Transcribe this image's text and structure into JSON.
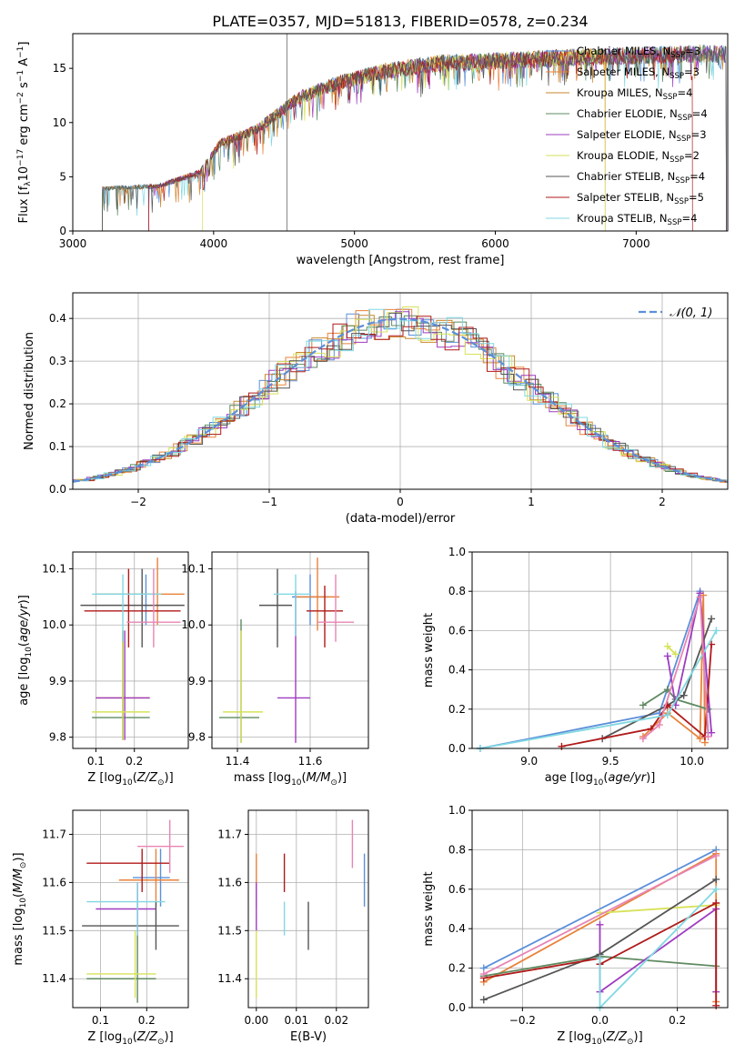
{
  "figure_title": "PLATE=0357, MJD=51813, FIBERID=0578, z=0.234",
  "colors": {
    "Chabrier MILES": "#5b8fd9",
    "Salpeter MILES": "#e8823a",
    "Kroupa MILES": "#c9872d",
    "Chabrier ELODIE": "#5f8a61",
    "Salpeter ELODIE": "#9f3cc1",
    "Kroupa ELODIE": "#d7e25a",
    "Chabrier STELIB": "#555555",
    "Salpeter STELIB": "#b01a1a",
    "Kroupa STELIB": "#80d8e2",
    "pink": "#e884b4"
  },
  "chart_data": [
    {
      "id": "spectrum",
      "type": "line",
      "xlabel": "wavelength [Angstrom, rest frame]",
      "ylabel": "Flux [f",
      "xlim": [
        3000,
        7650
      ],
      "ylim": [
        0,
        18.2
      ],
      "xticks": [
        "3000",
        "4000",
        "5000",
        "6000",
        "7000"
      ],
      "yticks": [
        "0",
        "5",
        "10",
        "15"
      ],
      "legend": [
        {
          "name": "Chabrier MILES",
          "nssp": "=3"
        },
        {
          "name": "Salpeter MILES",
          "nssp": "=3"
        },
        {
          "name": "Kroupa MILES",
          "nssp": "=4"
        },
        {
          "name": "Chabrier ELODIE",
          "nssp": "=4"
        },
        {
          "name": "Salpeter ELODIE",
          "nssp": "=3"
        },
        {
          "name": "Kroupa ELODIE",
          "nssp": "=2"
        },
        {
          "name": "Chabrier STELIB",
          "nssp": "=4"
        },
        {
          "name": "Salpeter STELIB",
          "nssp": "=5"
        },
        {
          "name": "Kroupa STELIB",
          "nssp": "=4"
        }
      ],
      "continuum": [
        [
          3200,
          4.0
        ],
        [
          3600,
          4.2
        ],
        [
          3900,
          5.5
        ],
        [
          4050,
          8.3
        ],
        [
          4300,
          9.5
        ],
        [
          4600,
          12.5
        ],
        [
          4900,
          14.0
        ],
        [
          5200,
          15.0
        ],
        [
          5600,
          15.8
        ],
        [
          6000,
          16.0
        ],
        [
          6500,
          16.3
        ],
        [
          7000,
          16.5
        ],
        [
          7500,
          16.7
        ],
        [
          7640,
          16.6
        ]
      ],
      "starts": [
        3210,
        3210,
        3540,
        3210,
        3540,
        3920,
        3210,
        3540,
        3210
      ],
      "ends": [
        7640,
        6780,
        7640,
        7640,
        7640,
        6780,
        7640,
        7400,
        7640
      ]
    },
    {
      "id": "residuals",
      "type": "line",
      "xlabel": "(data-model)/error",
      "ylabel": "Normed distribution",
      "xlim": [
        -2.5,
        2.5
      ],
      "ylim": [
        0,
        0.46
      ],
      "xticks": [
        "−2",
        "−1",
        "0",
        "1",
        "2"
      ],
      "yticks": [
        "0.0",
        "0.1",
        "0.2",
        "0.3",
        "0.4"
      ],
      "legend": "𝒩(0, 1)"
    },
    {
      "id": "age-vs-Z",
      "type": "scatter",
      "xlabel": "Z [log",
      "ylabel": "age  [log",
      "xlim": [
        0.04,
        0.34
      ],
      "ylim": [
        9.78,
        10.13
      ],
      "xticks": [
        "0.1",
        "0.2"
      ],
      "yticks": [
        "9.8",
        "9.9",
        "10.0",
        "10.1"
      ],
      "points": [
        {
          "s": "Chabrier MILES",
          "x": 0.23,
          "y": 10.055,
          "xe": [
            0.1,
            0.26
          ],
          "ye": [
            10.0,
            10.09
          ]
        },
        {
          "s": "Salpeter MILES",
          "x": 0.26,
          "y": 10.055,
          "xe": [
            0.1,
            0.33
          ],
          "ye": [
            10.0,
            10.12
          ]
        },
        {
          "s": "Kroupa MILES",
          "x": 0.17,
          "y": 9.87,
          "xe": [
            0.1,
            0.24
          ],
          "ye": [
            9.795,
            9.99
          ]
        },
        {
          "s": "Chabrier ELODIE",
          "x": 0.17,
          "y": 9.835,
          "xe": [
            0.09,
            0.24
          ],
          "ye": [
            9.795,
            9.99
          ]
        },
        {
          "s": "Salpeter ELODIE",
          "x": 0.175,
          "y": 9.87,
          "xe": [
            0.1,
            0.24
          ],
          "ye": [
            9.795,
            9.99
          ]
        },
        {
          "s": "Kroupa ELODIE",
          "x": 0.17,
          "y": 9.845,
          "xe": [
            0.09,
            0.24
          ],
          "ye": [
            9.795,
            9.99
          ]
        },
        {
          "s": "Chabrier STELIB",
          "x": 0.22,
          "y": 10.035,
          "xe": [
            0.06,
            0.33
          ],
          "ye": [
            9.96,
            10.1
          ]
        },
        {
          "s": "Salpeter STELIB",
          "x": 0.185,
          "y": 10.025,
          "xe": [
            0.07,
            0.32
          ],
          "ye": [
            9.96,
            10.1
          ]
        },
        {
          "s": "Kroupa STELIB",
          "x": 0.17,
          "y": 10.055,
          "xe": [
            0.09,
            0.27
          ],
          "ye": [
            9.97,
            10.09
          ]
        },
        {
          "s": "pink",
          "x": 0.25,
          "y": 10.005,
          "xe": [
            0.18,
            0.32
          ],
          "ye": [
            9.96,
            10.1
          ]
        }
      ]
    },
    {
      "id": "age-vs-mass",
      "type": "scatter",
      "xlabel": "mass [log",
      "ylabel": "",
      "xlim": [
        11.33,
        11.76
      ],
      "ylim": [
        9.78,
        10.13
      ],
      "xticks": [
        "11.4",
        "11.6"
      ],
      "yticks": [
        "9.8",
        "9.9",
        "10.0",
        "10.1"
      ],
      "points": [
        {
          "s": "Chabrier MILES",
          "x": 11.6,
          "y": 10.05,
          "xe": [
            11.55,
            11.65
          ],
          "ye": [
            10.0,
            10.09
          ]
        },
        {
          "s": "Salpeter MILES",
          "x": 11.62,
          "y": 10.05,
          "xe": [
            11.56,
            11.68
          ],
          "ye": [
            9.99,
            10.12
          ]
        },
        {
          "s": "Chabrier ELODIE",
          "x": 11.41,
          "y": 9.835,
          "xe": [
            11.35,
            11.46
          ],
          "ye": [
            9.79,
            10.01
          ]
        },
        {
          "s": "Salpeter ELODIE",
          "x": 11.56,
          "y": 9.87,
          "xe": [
            11.51,
            11.6
          ],
          "ye": [
            9.79,
            10.06
          ]
        },
        {
          "s": "Kroupa ELODIE",
          "x": 11.41,
          "y": 9.845,
          "xe": [
            11.36,
            11.47
          ],
          "ye": [
            9.79,
            9.99
          ]
        },
        {
          "s": "Chabrier STELIB",
          "x": 11.51,
          "y": 10.035,
          "xe": [
            11.46,
            11.55
          ],
          "ye": [
            9.96,
            10.1
          ]
        },
        {
          "s": "Salpeter STELIB",
          "x": 11.64,
          "y": 10.025,
          "xe": [
            11.59,
            11.69
          ],
          "ye": [
            9.96,
            10.07
          ]
        },
        {
          "s": "Kroupa STELIB",
          "x": 11.56,
          "y": 10.055,
          "xe": [
            11.5,
            11.6
          ],
          "ye": [
            9.98,
            10.09
          ]
        },
        {
          "s": "pink",
          "x": 11.67,
          "y": 10.005,
          "xe": [
            11.62,
            11.72
          ],
          "ye": [
            9.97,
            10.09
          ]
        }
      ]
    },
    {
      "id": "weight-vs-age",
      "type": "line",
      "xlabel": "age  [log",
      "ylabel": "mass weight",
      "xlim": [
        8.65,
        10.22
      ],
      "ylim": [
        0,
        1.0
      ],
      "xticks": [
        "9.0",
        "9.5",
        "10.0"
      ],
      "yticks": [
        "0.0",
        "0.2",
        "0.4",
        "0.6",
        "0.8",
        "1.0"
      ],
      "series": [
        {
          "s": "Chabrier MILES",
          "x": [
            8.7,
            9.8,
            10.05,
            10.1
          ],
          "y": [
            0.0,
            0.18,
            0.8,
            0.08
          ]
        },
        {
          "s": "Salpeter MILES",
          "x": [
            9.7,
            9.85,
            10.05,
            10.07,
            10.08
          ],
          "y": [
            0.06,
            0.18,
            0.05,
            0.78,
            0.03
          ]
        },
        {
          "s": "Chabrier ELODIE",
          "x": [
            9.7,
            9.85,
            9.9,
            10.1
          ],
          "y": [
            0.22,
            0.3,
            0.25,
            0.2
          ]
        },
        {
          "s": "Salpeter ELODIE",
          "x": [
            9.85,
            9.9,
            10.05,
            10.12
          ],
          "y": [
            0.47,
            0.22,
            0.79,
            0.08
          ]
        },
        {
          "s": "Kroupa ELODIE",
          "x": [
            9.85,
            9.9
          ],
          "y": [
            0.52,
            0.48
          ]
        },
        {
          "s": "Chabrier STELIB",
          "x": [
            9.45,
            9.85,
            9.95,
            10.12
          ],
          "y": [
            0.05,
            0.22,
            0.27,
            0.66
          ]
        },
        {
          "s": "Salpeter STELIB",
          "x": [
            9.2,
            9.75,
            9.85,
            10.08,
            10.12
          ],
          "y": [
            0.01,
            0.1,
            0.22,
            0.06,
            0.53
          ]
        },
        {
          "s": "Kroupa STELIB",
          "x": [
            8.7,
            9.85,
            10.15
          ],
          "y": [
            0.0,
            0.17,
            0.6
          ]
        },
        {
          "s": "pink",
          "x": [
            9.7,
            9.8,
            10.05,
            10.1
          ],
          "y": [
            0.05,
            0.12,
            0.77,
            0.06
          ]
        }
      ]
    },
    {
      "id": "mass-vs-Z",
      "type": "scatter",
      "xlabel": "Z [log",
      "ylabel": "mass [log",
      "xlim": [
        0.04,
        0.29
      ],
      "ylim": [
        11.34,
        11.75
      ],
      "xticks": [
        "0.1",
        "0.2"
      ],
      "yticks": [
        "11.4",
        "11.5",
        "11.6",
        "11.7"
      ],
      "points": [
        {
          "s": "Chabrier MILES",
          "x": 0.23,
          "y": 11.61,
          "xe": [
            0.17,
            0.25
          ],
          "ye": [
            11.55,
            11.67
          ]
        },
        {
          "s": "Salpeter MILES",
          "x": 0.22,
          "y": 11.605,
          "xe": [
            0.14,
            0.27
          ],
          "ye": [
            11.55,
            11.67
          ]
        },
        {
          "s": "Chabrier ELODIE",
          "x": 0.18,
          "y": 11.4,
          "xe": [
            0.07,
            0.22
          ],
          "ye": [
            11.35,
            11.49
          ]
        },
        {
          "s": "Salpeter ELODIE",
          "x": 0.18,
          "y": 11.545,
          "xe": [
            0.09,
            0.22
          ],
          "ye": [
            11.49,
            11.6
          ]
        },
        {
          "s": "Kroupa ELODIE",
          "x": 0.175,
          "y": 11.41,
          "xe": [
            0.07,
            0.22
          ],
          "ye": [
            11.36,
            11.5
          ]
        },
        {
          "s": "Chabrier STELIB",
          "x": 0.22,
          "y": 11.51,
          "xe": [
            0.06,
            0.27
          ],
          "ye": [
            11.46,
            11.56
          ]
        },
        {
          "s": "Salpeter STELIB",
          "x": 0.19,
          "y": 11.64,
          "xe": [
            0.07,
            0.25
          ],
          "ye": [
            11.58,
            11.67
          ]
        },
        {
          "s": "Kroupa STELIB",
          "x": 0.18,
          "y": 11.56,
          "xe": [
            0.07,
            0.24
          ],
          "ye": [
            11.49,
            11.6
          ]
        },
        {
          "s": "pink",
          "x": 0.25,
          "y": 11.675,
          "xe": [
            0.18,
            0.28
          ],
          "ye": [
            11.62,
            11.73
          ]
        }
      ]
    },
    {
      "id": "mass-vs-EBV",
      "type": "scatter",
      "xlabel": "E(B-V)",
      "ylabel": "",
      "xlim": [
        -0.002,
        0.028
      ],
      "ylim": [
        11.34,
        11.75
      ],
      "xticks": [
        "0.00",
        "0.01",
        "0.02"
      ],
      "yticks": [
        "11.4",
        "11.5",
        "11.6",
        "11.7"
      ],
      "points": [
        {
          "s": "Chabrier MILES",
          "x": 0.027,
          "y": 11.61,
          "xe": [
            0.027,
            0.027
          ],
          "ye": [
            11.55,
            11.66
          ]
        },
        {
          "s": "Salpeter MILES",
          "x": 0.0,
          "y": 11.6,
          "xe": [
            0.0,
            0.0
          ],
          "ye": [
            11.55,
            11.66
          ]
        },
        {
          "s": "Salpeter ELODIE",
          "x": 0.0,
          "y": 11.55,
          "xe": [
            0.0,
            0.0
          ],
          "ye": [
            11.5,
            11.6
          ]
        },
        {
          "s": "Kroupa ELODIE",
          "x": 0.0,
          "y": 11.41,
          "xe": [
            0.0,
            0.0
          ],
          "ye": [
            11.36,
            11.5
          ]
        },
        {
          "s": "Chabrier STELIB",
          "x": 0.013,
          "y": 11.51,
          "xe": [
            0.013,
            0.013
          ],
          "ye": [
            11.46,
            11.56
          ]
        },
        {
          "s": "Salpeter STELIB",
          "x": 0.007,
          "y": 11.62,
          "xe": [
            0.007,
            0.007
          ],
          "ye": [
            11.58,
            11.66
          ]
        },
        {
          "s": "Kroupa STELIB",
          "x": 0.007,
          "y": 11.53,
          "xe": [
            0.007,
            0.007
          ],
          "ye": [
            11.49,
            11.56
          ]
        },
        {
          "s": "pink",
          "x": 0.024,
          "y": 11.68,
          "xe": [
            0.024,
            0.024
          ],
          "ye": [
            11.63,
            11.73
          ]
        }
      ]
    },
    {
      "id": "weight-vs-Z",
      "type": "line",
      "xlabel": "Z [log",
      "ylabel": "mass weight",
      "xlim": [
        -0.33,
        0.33
      ],
      "ylim": [
        0,
        1.0
      ],
      "xticks": [
        "−0.2",
        "0.0",
        "0.2"
      ],
      "yticks": [
        "0.0",
        "0.2",
        "0.4",
        "0.6",
        "0.8",
        "1.0"
      ],
      "series": [
        {
          "s": "Chabrier MILES",
          "x": [
            -0.3,
            0.3
          ],
          "y": [
            0.2,
            0.8
          ]
        },
        {
          "s": "Salpeter MILES",
          "x": [
            -0.3,
            0.3,
            0.3
          ],
          "y": [
            0.13,
            0.78,
            0.03
          ]
        },
        {
          "s": "Chabrier ELODIE",
          "x": [
            -0.3,
            0.0,
            0.3
          ],
          "y": [
            0.16,
            0.26,
            0.21
          ]
        },
        {
          "s": "Salpeter ELODIE",
          "x": [
            0.0,
            0.0,
            0.3,
            0.3
          ],
          "y": [
            0.42,
            0.08,
            0.5,
            0.08
          ]
        },
        {
          "s": "Kroupa ELODIE",
          "x": [
            0.0,
            0.3
          ],
          "y": [
            0.48,
            0.52
          ]
        },
        {
          "s": "Chabrier STELIB",
          "x": [
            -0.3,
            0.0,
            0.3
          ],
          "y": [
            0.04,
            0.27,
            0.65
          ]
        },
        {
          "s": "Salpeter STELIB",
          "x": [
            -0.3,
            0.0,
            0.0,
            0.3,
            0.3
          ],
          "y": [
            0.15,
            0.25,
            0.22,
            0.53,
            0.01
          ]
        },
        {
          "s": "Kroupa STELIB",
          "x": [
            0.0,
            0.0,
            0.3
          ],
          "y": [
            0.25,
            0.0,
            0.6
          ]
        },
        {
          "s": "pink",
          "x": [
            -0.3,
            0.3
          ],
          "y": [
            0.17,
            0.77
          ]
        }
      ]
    }
  ]
}
